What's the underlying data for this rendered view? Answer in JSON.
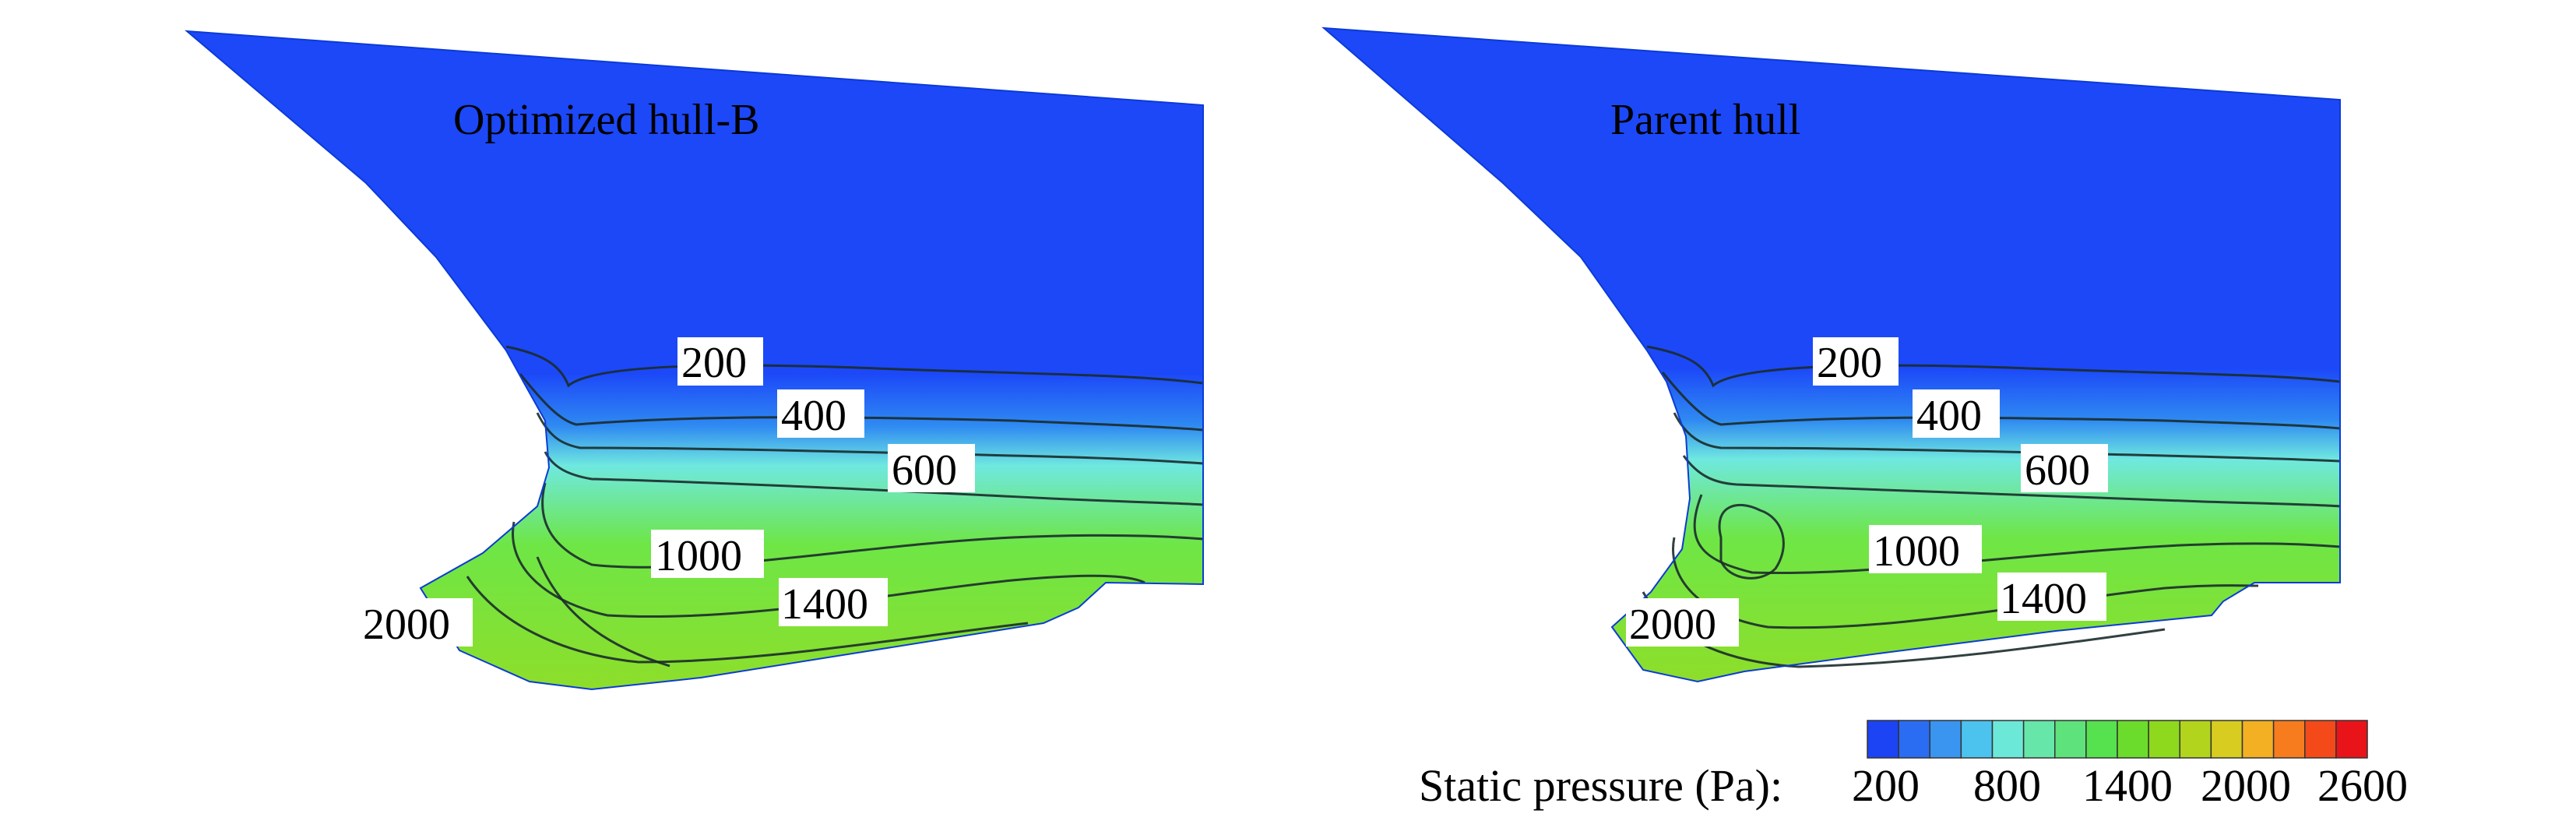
{
  "panels": [
    {
      "title": "Optimized hull-B",
      "contour_labels": [
        "200",
        "400",
        "600",
        "1000",
        "1400",
        "2000"
      ]
    },
    {
      "title": "Parent hull",
      "contour_labels": [
        "200",
        "400",
        "600",
        "1000",
        "1400",
        "2000"
      ]
    }
  ],
  "colorbar": {
    "label": "Static pressure (Pa):",
    "ticks": [
      "200",
      "800",
      "1400",
      "2000",
      "2600"
    ],
    "colors": [
      "#1c44f4",
      "#2a6df2",
      "#3a95f0",
      "#4cc3ee",
      "#6ce8d8",
      "#66e6a8",
      "#5ee27c",
      "#55e24e",
      "#6bdc2c",
      "#8ed81e",
      "#b2d41c",
      "#d8cc20",
      "#f2b022",
      "#f77c1e",
      "#f44a1a",
      "#e8141a"
    ]
  },
  "pressure_colors": {
    "low": "#1c48f8",
    "mid_blue": "#2f8af2",
    "cyan": "#6fe8e0",
    "green": "#6ee646",
    "lime": "#8ede2a"
  }
}
